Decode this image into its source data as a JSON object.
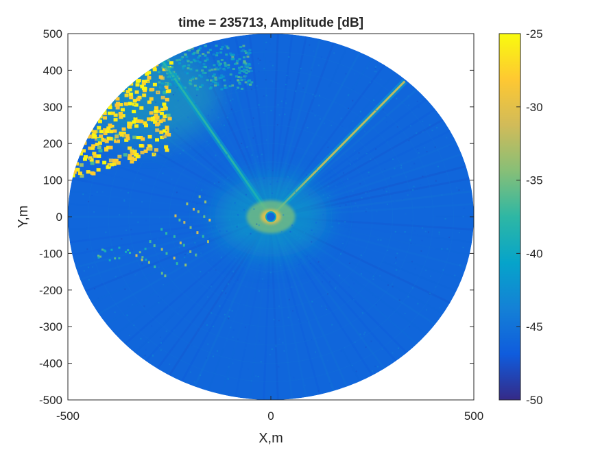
{
  "chart_data": {
    "type": "heatmap",
    "title": "time = 235713, Amplitude [dB]",
    "xlabel": "X,m",
    "ylabel": "Y,m",
    "xlim": [
      -500,
      500
    ],
    "ylim": [
      -500,
      500
    ],
    "x_ticks": [
      -500,
      0,
      500
    ],
    "x_tick_labels": [
      "-500",
      "0",
      "500"
    ],
    "y_ticks": [
      -500,
      -400,
      -300,
      -200,
      -100,
      0,
      100,
      200,
      300,
      400,
      500
    ],
    "y_tick_labels": [
      "-500",
      "-400",
      "-300",
      "-200",
      "-100",
      "0",
      "100",
      "200",
      "300",
      "400",
      "500"
    ],
    "grid": false,
    "domain": "circular radar sweep, radius 500 m",
    "colorbar": {
      "colormap": "parula",
      "range": [
        -50,
        -25
      ],
      "ticks": [
        -50,
        -45,
        -40,
        -35,
        -30,
        -25
      ],
      "tick_labels": [
        "-50",
        "-45",
        "-40",
        "-35",
        "-30",
        "-25"
      ],
      "colors": [
        "#352a87",
        "#0f5cdd",
        "#1481d6",
        "#06a4ca",
        "#2eb7a4",
        "#87bf77",
        "#d1bb59",
        "#fec832",
        "#f9fb0e"
      ]
    },
    "background_level_db": -46,
    "features": [
      {
        "kind": "strong-return region",
        "x_range": [
          -500,
          -250
        ],
        "y_range": [
          100,
          430
        ],
        "level_db": -25
      },
      {
        "kind": "radial streak",
        "from": [
          0,
          0
        ],
        "to": [
          -270,
          430
        ],
        "level_db": -38
      },
      {
        "kind": "radial streak",
        "from": [
          0,
          0
        ],
        "to": [
          330,
          370
        ],
        "level_db": -32
      },
      {
        "kind": "near-field clutter",
        "center": [
          0,
          0
        ],
        "radius": 80,
        "level_db": -30
      },
      {
        "kind": "scattered point returns",
        "x_range": [
          -430,
          -150
        ],
        "y_range": [
          -170,
          90
        ],
        "level_db": -30
      }
    ]
  }
}
